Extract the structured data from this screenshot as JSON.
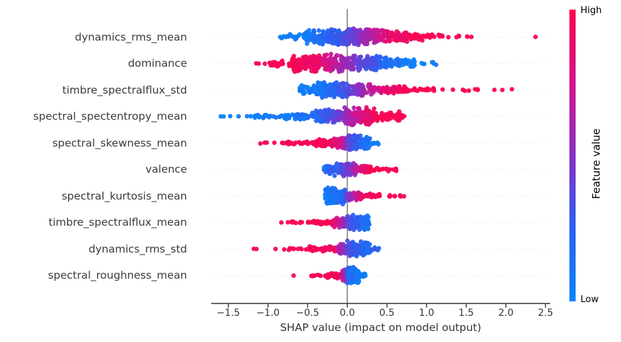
{
  "chart_data": {
    "type": "scatter",
    "variant": "shap-beeswarm-summary",
    "title": "",
    "xlabel": "SHAP value (impact on model output)",
    "xlim": [
      -1.72,
      2.56
    ],
    "xticks": [
      -1.5,
      -1.0,
      -0.5,
      0.0,
      0.5,
      1.0,
      1.5,
      2.0,
      2.5
    ],
    "xtick_labels": [
      "−1.5",
      "−1.0",
      "−0.5",
      "0.0",
      "0.5",
      "1.0",
      "1.5",
      "2.0",
      "2.5"
    ],
    "grid": "faint dashed horizontal line per feature row",
    "zero_line": true,
    "colorbar": {
      "title": "Feature value",
      "high": "High",
      "low": "Low",
      "position": "right",
      "gradient_top_to_bottom": [
        {
          "color": "#fa0550",
          "pos": 0
        },
        {
          "color": "#d2148c",
          "pos": 25
        },
        {
          "color": "#8232c8",
          "pos": 52
        },
        {
          "color": "#2d5ff0",
          "pos": 74
        },
        {
          "color": "#0a84fa",
          "pos": 100
        }
      ]
    },
    "colormap": {
      "low_color": "#0a84fa",
      "mid_color": "#8232c8",
      "high_color": "#fa0550",
      "stops_rgb": [
        [
          10,
          132,
          250
        ],
        [
          45,
          95,
          240
        ],
        [
          130,
          50,
          200
        ],
        [
          210,
          20,
          140
        ],
        [
          250,
          5,
          80
        ]
      ],
      "stop_positions": [
        0,
        0.25,
        0.5,
        0.75,
        1
      ]
    },
    "features": [
      {
        "name": "dynamics_rms_mean",
        "shap_range": [
          -0.85,
          2.38
        ],
        "color_pattern": "low(blue) negative, high(red) positive; red outliers to 2.38",
        "segments": [
          [
            -0.85,
            -0.55,
            18,
            4,
            0.02,
            0.06
          ],
          [
            -0.55,
            -0.15,
            120,
            11,
            0.03,
            0.25
          ],
          [
            -0.15,
            0.15,
            130,
            13,
            0.25,
            0.5
          ],
          [
            0.15,
            0.5,
            110,
            12,
            0.52,
            0.82
          ],
          [
            0.5,
            0.85,
            60,
            8,
            0.85,
            1
          ],
          [
            0.85,
            1.18,
            25,
            5,
            1,
            1
          ],
          [
            1.18,
            1.45,
            6,
            2,
            1,
            1
          ],
          [
            1.5,
            1.7,
            3,
            1,
            1,
            1
          ],
          [
            2.33,
            2.38,
            1,
            0.5,
            1,
            1
          ]
        ]
      },
      {
        "name": "dominance",
        "shap_range": [
          -1.17,
          1.18
        ],
        "color_pattern": "high(red) negative, low(blue) positive",
        "segments": [
          [
            -1.17,
            -1.0,
            3,
            1,
            1,
            1
          ],
          [
            -1.0,
            -0.7,
            25,
            5,
            1,
            1
          ],
          [
            -0.7,
            -0.3,
            120,
            13,
            1,
            0.85
          ],
          [
            -0.3,
            0.1,
            140,
            13,
            0.8,
            0.5
          ],
          [
            0.1,
            0.5,
            110,
            11,
            0.45,
            0.18
          ],
          [
            0.5,
            0.85,
            45,
            7,
            0.15,
            0.03
          ],
          [
            0.9,
            1.18,
            7,
            2.5,
            0.03,
            0.03
          ]
        ]
      },
      {
        "name": "timbre_spectralflux_std",
        "shap_range": [
          -0.6,
          2.1
        ],
        "color_pattern": "low(blue) negative, high(red) positive; red outliers 1.2-2.1",
        "segments": [
          [
            -0.6,
            -0.38,
            35,
            7,
            0.02,
            0.08
          ],
          [
            -0.38,
            0.02,
            140,
            12,
            0.06,
            0.35
          ],
          [
            0.02,
            0.35,
            90,
            9,
            0.4,
            0.75
          ],
          [
            0.35,
            0.75,
            50,
            6,
            0.8,
            1
          ],
          [
            0.75,
            1.1,
            18,
            3,
            1,
            1
          ],
          [
            1.2,
            1.68,
            8,
            1.5,
            1,
            1
          ],
          [
            1.78,
            2.1,
            3,
            1,
            1,
            1
          ]
        ]
      },
      {
        "name": "spectral_spectentropy_mean",
        "shap_range": [
          -1.6,
          0.72
        ],
        "color_pattern": "low(blue) long negative tail, high(red) small positive",
        "segments": [
          [
            -1.6,
            -1.25,
            5,
            1,
            0.02,
            0.02
          ],
          [
            -1.22,
            -0.85,
            20,
            2.5,
            0.02,
            0.05
          ],
          [
            -0.85,
            -0.4,
            55,
            6,
            0.03,
            0.15
          ],
          [
            -0.4,
            -0.05,
            110,
            10,
            0.18,
            0.5
          ],
          [
            -0.05,
            0.35,
            150,
            14,
            0.55,
            0.95
          ],
          [
            0.35,
            0.72,
            45,
            7,
            1,
            1
          ]
        ]
      },
      {
        "name": "spectral_skewness_mean",
        "shap_range": [
          -1.27,
          0.4
        ],
        "color_pattern": "high(red) negative tail, low(blue) small positive",
        "segments": [
          [
            -1.27,
            -0.78,
            7,
            1,
            1,
            1
          ],
          [
            -0.78,
            -0.45,
            25,
            3,
            1,
            1
          ],
          [
            -0.45,
            -0.18,
            60,
            5.5,
            1,
            0.95
          ],
          [
            -0.18,
            0.05,
            110,
            9,
            0.9,
            0.5
          ],
          [
            0,
            0.3,
            120,
            12,
            0.4,
            0.08
          ],
          [
            0.3,
            0.4,
            8,
            2.5,
            0.06,
            0.02
          ]
        ]
      },
      {
        "name": "valence",
        "shap_range": [
          -0.3,
          0.62
        ],
        "color_pattern": "compact; low(blue) slightly negative, high(red) positive tail",
        "segments": [
          [
            -0.3,
            -0.08,
            60,
            9,
            0.15,
            0.3
          ],
          [
            -0.08,
            0.12,
            90,
            11,
            0.35,
            0.65
          ],
          [
            0.12,
            0.3,
            45,
            5.5,
            0.75,
            1
          ],
          [
            0.3,
            0.62,
            18,
            2.5,
            1,
            1
          ]
        ]
      },
      {
        "name": "spectral_kurtosis_mean",
        "shap_range": [
          -0.28,
          0.72
        ],
        "color_pattern": "low(blue) dense slightly negative, high(red) positive tail",
        "segments": [
          [
            -0.28,
            -0.02,
            130,
            13,
            0.05,
            0.2
          ],
          [
            -0.02,
            0.18,
            60,
            6.5,
            0.45,
            0.85
          ],
          [
            0.18,
            0.45,
            28,
            3.5,
            0.95,
            1
          ],
          [
            0.45,
            0.72,
            10,
            1.5,
            1,
            1
          ]
        ]
      },
      {
        "name": "timbre_spectralflux_mean",
        "shap_range": [
          -0.85,
          0.28
        ],
        "color_pattern": "high(red) negative tail, low(blue) small positive cluster",
        "segments": [
          [
            -0.85,
            -0.45,
            14,
            1.5,
            1,
            1
          ],
          [
            -0.45,
            -0.18,
            40,
            3.5,
            1,
            1
          ],
          [
            -0.18,
            0.05,
            70,
            8,
            0.85,
            0.4
          ],
          [
            0,
            0.28,
            110,
            12,
            0.35,
            0.12
          ]
        ]
      },
      {
        "name": "dynamics_rms_std",
        "shap_range": [
          -1.21,
          0.4
        ],
        "color_pattern": "high(red) scattered negative, low(blue) small positive cluster",
        "segments": [
          [
            -1.21,
            -0.9,
            3,
            1,
            1,
            1
          ],
          [
            -0.85,
            -0.48,
            12,
            1.5,
            1,
            1
          ],
          [
            -0.48,
            -0.12,
            55,
            4,
            1,
            0.9
          ],
          [
            -0.12,
            0.05,
            70,
            8,
            0.7,
            0.35
          ],
          [
            0,
            0.3,
            110,
            12,
            0.35,
            0.12
          ],
          [
            0.3,
            0.4,
            8,
            3,
            0.3,
            0.2
          ]
        ]
      },
      {
        "name": "spectral_roughness_mean",
        "shap_range": [
          -0.7,
          0.23
        ],
        "color_pattern": "high(red) negative tail, low(blue) tall narrow positive cluster",
        "segments": [
          [
            -0.7,
            -0.65,
            1,
            0.5,
            1,
            1
          ],
          [
            -0.52,
            -0.28,
            9,
            1.2,
            1,
            1
          ],
          [
            -0.28,
            -0.06,
            45,
            4,
            1,
            0.9
          ],
          [
            -0.06,
            0.03,
            60,
            9,
            0.7,
            0.3
          ],
          [
            0,
            0.15,
            110,
            13,
            0.18,
            0.05
          ],
          [
            0.15,
            0.23,
            12,
            4,
            0.05,
            0.02
          ]
        ]
      }
    ],
    "style": {
      "background": "#ffffff",
      "spine_color": "#333333",
      "zero_line_color": "#808080",
      "grid_color": "rgba(0,0,0,0.13)",
      "dot_radius_px": 3.3
    }
  }
}
